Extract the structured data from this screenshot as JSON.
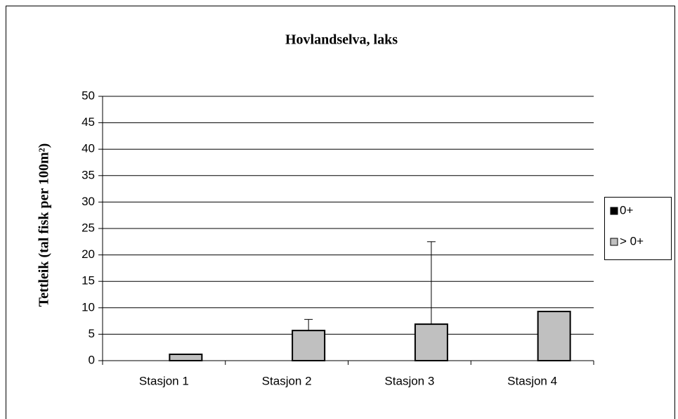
{
  "chart_data": {
    "type": "bar",
    "title": "Hovlandselva, laks",
    "y_label": "Tettleik (tal fisk per 100m²)",
    "categories": [
      "Stasjon 1",
      "Stasjon 2",
      "Stasjon 3",
      "Stasjon 4"
    ],
    "series": [
      {
        "name": "0+",
        "color": "#000000",
        "values": [
          0,
          0,
          0,
          0
        ]
      },
      {
        "name": "> 0+",
        "color": "#c0c0c0",
        "values": [
          1.2,
          5.7,
          6.9,
          9.3
        ],
        "errors": [
          null,
          2.1,
          15.6,
          null
        ]
      }
    ],
    "ylim": [
      0,
      50
    ],
    "yticks": [
      0,
      5,
      10,
      15,
      20,
      25,
      30,
      35,
      40,
      45,
      50
    ],
    "grid": true,
    "legend": "right"
  }
}
